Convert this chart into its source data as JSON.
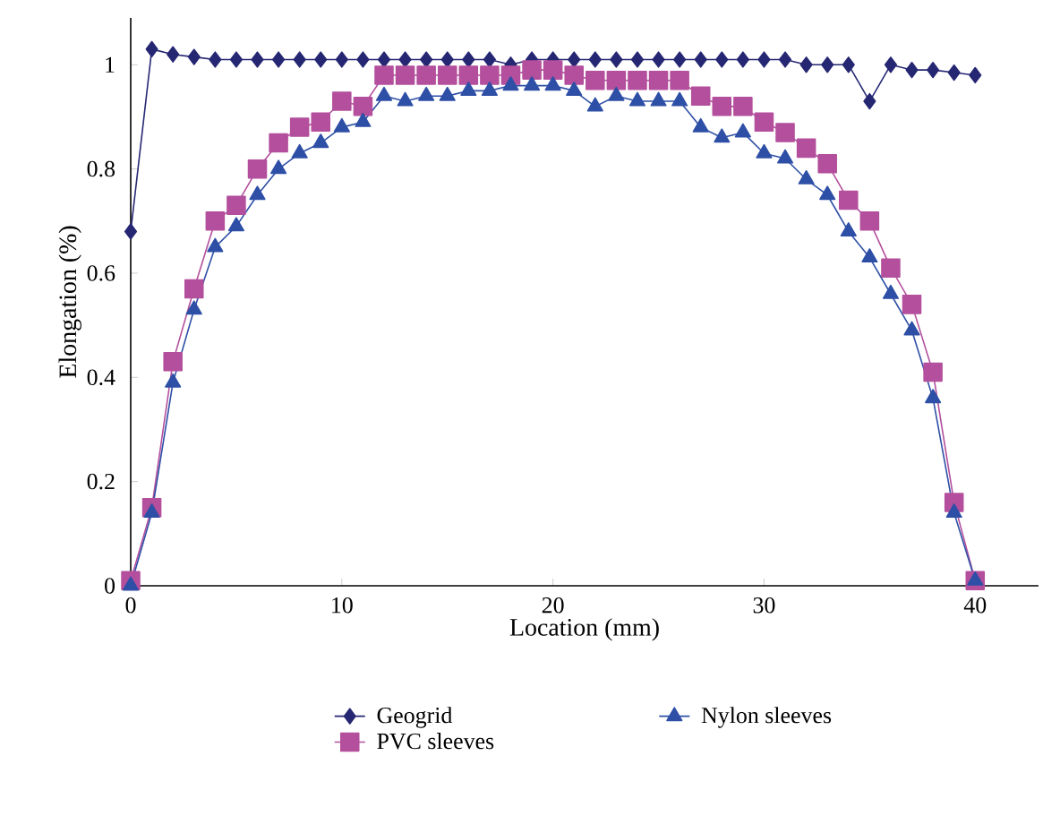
{
  "chart_data": {
    "type": "line",
    "xlabel": "Location (mm)",
    "ylabel": "Elongation (%)",
    "x": [
      0,
      1,
      2,
      3,
      4,
      5,
      6,
      7,
      8,
      9,
      10,
      11,
      12,
      13,
      14,
      15,
      16,
      17,
      18,
      19,
      20,
      21,
      22,
      23,
      24,
      25,
      26,
      27,
      28,
      29,
      30,
      31,
      32,
      33,
      34,
      35,
      36,
      37,
      38,
      39,
      40
    ],
    "series": [
      {
        "name": "Geogrid",
        "color": "#262773",
        "marker": "diamond",
        "values": [
          0.68,
          1.03,
          1.02,
          1.015,
          1.01,
          1.01,
          1.01,
          1.01,
          1.01,
          1.01,
          1.01,
          1.01,
          1.01,
          1.01,
          1.01,
          1.01,
          1.01,
          1.01,
          1.0,
          1.01,
          1.01,
          1.01,
          1.01,
          1.01,
          1.01,
          1.01,
          1.01,
          1.01,
          1.01,
          1.01,
          1.01,
          1.01,
          1.0,
          1.0,
          1.0,
          0.93,
          1.0,
          0.99,
          0.99,
          0.985,
          0.98
        ]
      },
      {
        "name": "PVC sleeves",
        "color": "#b34f9c",
        "marker": "square",
        "values": [
          0.01,
          0.15,
          0.43,
          0.57,
          0.7,
          0.73,
          0.8,
          0.85,
          0.88,
          0.89,
          0.93,
          0.92,
          0.98,
          0.98,
          0.98,
          0.98,
          0.98,
          0.98,
          0.98,
          0.99,
          0.99,
          0.98,
          0.97,
          0.97,
          0.97,
          0.97,
          0.97,
          0.94,
          0.92,
          0.92,
          0.89,
          0.87,
          0.84,
          0.81,
          0.74,
          0.7,
          0.61,
          0.54,
          0.41,
          0.16,
          0.01
        ]
      },
      {
        "name": "Nylon sleeves",
        "color": "#2e4fa6",
        "marker": "triangle",
        "values": [
          0.0,
          0.14,
          0.39,
          0.53,
          0.65,
          0.69,
          0.75,
          0.8,
          0.83,
          0.85,
          0.88,
          0.89,
          0.94,
          0.93,
          0.94,
          0.94,
          0.95,
          0.95,
          0.96,
          0.96,
          0.96,
          0.95,
          0.92,
          0.94,
          0.93,
          0.93,
          0.93,
          0.88,
          0.86,
          0.87,
          0.83,
          0.82,
          0.78,
          0.75,
          0.68,
          0.63,
          0.56,
          0.49,
          0.36,
          0.14,
          0.01
        ]
      }
    ],
    "xlim": [
      0,
      43
    ],
    "ylim": [
      0,
      1.09
    ],
    "xticks": [
      0,
      10,
      20,
      30,
      40
    ],
    "yticks": [
      0,
      0.2,
      0.4,
      0.6,
      0.8,
      1
    ],
    "grid": false,
    "legend": "bottom",
    "line_style": "solid"
  }
}
